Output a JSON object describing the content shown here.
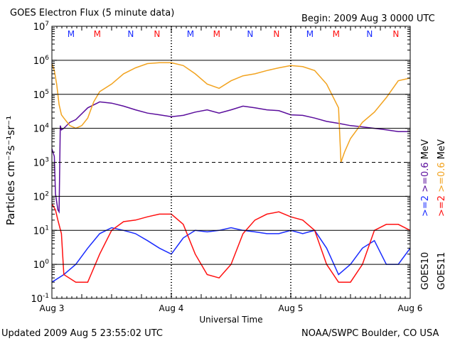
{
  "header": {
    "title": "GOES Electron Flux (5 minute data)",
    "begin": "Begin: 2009 Aug 3 0000 UTC"
  },
  "footer": {
    "updated": "Updated 2009 Aug  5 23:55:02 UTC",
    "credit": "NOAA/SWPC Boulder, CO USA"
  },
  "colors": {
    "goes10_ge06": "#5a0d9c",
    "goes10_ge2": "#1a2cff",
    "goes11_ge06": "#f2a31f",
    "goes11_ge2": "#ff1010",
    "marker_m_blue": "#1a2cff",
    "marker_m_red": "#ff1010"
  },
  "chart_data": {
    "type": "line",
    "title": "GOES Electron Flux (5 minute data)",
    "xlabel": "Universal Time",
    "ylabel": "Particles cm⁻²s⁻¹sr⁻¹",
    "y_scale": "log",
    "ylim": [
      0.1,
      10000000
    ],
    "y_tick_exponents": [
      -1,
      0,
      1,
      2,
      3,
      4,
      5,
      6,
      7
    ],
    "x_range_days": [
      0,
      3
    ],
    "x_tick_labels": [
      "Aug 3",
      "Aug 4",
      "Aug 5",
      "Aug 6"
    ],
    "dashed_threshold": 1000,
    "legend_right": [
      {
        "label": ">=2",
        "color": "#1a2cff"
      },
      {
        "label": ">=0.6",
        "color": "#5a0d9c"
      },
      {
        "label": "MeV",
        "color": "#000000"
      },
      {
        "label": ">=2",
        "color": "#ff1010"
      },
      {
        "label": ">=0.6",
        "color": "#f2a31f"
      },
      {
        "label": "MeV",
        "color": "#000000"
      }
    ],
    "legend_side_labels": [
      "GOES10",
      "GOES11"
    ],
    "local_time_markers": [
      {
        "label": "M",
        "color": "#1a2cff",
        "day": 0.16
      },
      {
        "label": "M",
        "color": "#ff1010",
        "day": 0.38
      },
      {
        "label": "N",
        "color": "#1a2cff",
        "day": 0.66
      },
      {
        "label": "N",
        "color": "#ff1010",
        "day": 0.88
      },
      {
        "label": "M",
        "color": "#1a2cff",
        "day": 1.16
      },
      {
        "label": "M",
        "color": "#ff1010",
        "day": 1.38
      },
      {
        "label": "N",
        "color": "#1a2cff",
        "day": 1.66
      },
      {
        "label": "N",
        "color": "#ff1010",
        "day": 1.88
      },
      {
        "label": "M",
        "color": "#1a2cff",
        "day": 2.16
      },
      {
        "label": "M",
        "color": "#ff1010",
        "day": 2.38
      },
      {
        "label": "N",
        "color": "#1a2cff",
        "day": 2.66
      },
      {
        "label": "N",
        "color": "#ff1010",
        "day": 2.88
      }
    ],
    "series": [
      {
        "name": "GOES10 >=0.6 MeV",
        "color": "#5a0d9c",
        "x": [
          0.0,
          0.02,
          0.03,
          0.05,
          0.06,
          0.07,
          0.08,
          0.1,
          0.15,
          0.2,
          0.3,
          0.4,
          0.5,
          0.6,
          0.7,
          0.8,
          0.9,
          1.0,
          1.1,
          1.2,
          1.3,
          1.4,
          1.5,
          1.6,
          1.7,
          1.8,
          1.9,
          2.0,
          2.1,
          2.2,
          2.3,
          2.4,
          2.5,
          2.6,
          2.7,
          2.8,
          2.9,
          3.0
        ],
        "y": [
          2500,
          1500,
          120,
          40,
          35,
          12000,
          9000,
          10000,
          15000,
          18000,
          40000,
          60000,
          55000,
          45000,
          35000,
          28000,
          25000,
          22000,
          24000,
          30000,
          35000,
          28000,
          35000,
          45000,
          40000,
          35000,
          33000,
          25000,
          24000,
          20000,
          16000,
          14000,
          12000,
          11000,
          10000,
          9000,
          8000,
          8000
        ]
      },
      {
        "name": "GOES11 >=0.6 MeV",
        "color": "#f2a31f",
        "x": [
          0.0,
          0.02,
          0.04,
          0.06,
          0.08,
          0.1,
          0.15,
          0.2,
          0.25,
          0.3,
          0.35,
          0.4,
          0.5,
          0.6,
          0.7,
          0.8,
          0.9,
          1.0,
          1.1,
          1.2,
          1.3,
          1.4,
          1.5,
          1.6,
          1.7,
          1.8,
          1.9,
          2.0,
          2.1,
          2.2,
          2.3,
          2.4,
          2.42,
          2.45,
          2.5,
          2.6,
          2.7,
          2.8,
          2.9,
          3.0
        ],
        "y": [
          800000,
          500000,
          200000,
          50000,
          25000,
          20000,
          12000,
          10000,
          12000,
          20000,
          60000,
          120000,
          200000,
          400000,
          600000,
          800000,
          850000,
          850000,
          700000,
          400000,
          200000,
          150000,
          250000,
          350000,
          400000,
          500000,
          600000,
          700000,
          650000,
          500000,
          200000,
          40000,
          1000,
          2000,
          5000,
          15000,
          30000,
          80000,
          250000,
          300000
        ]
      },
      {
        "name": "GOES10 >=2 MeV",
        "color": "#1a2cff",
        "x": [
          0.0,
          0.1,
          0.2,
          0.3,
          0.4,
          0.5,
          0.6,
          0.7,
          0.8,
          0.9,
          1.0,
          1.1,
          1.2,
          1.3,
          1.4,
          1.5,
          1.6,
          1.7,
          1.8,
          1.9,
          2.0,
          2.1,
          2.2,
          2.3,
          2.4,
          2.5,
          2.6,
          2.7,
          2.8,
          2.9,
          3.0
        ],
        "y": [
          0.3,
          0.5,
          1.0,
          3.0,
          8.0,
          12.0,
          10.0,
          8.0,
          5.0,
          3.0,
          2.0,
          6.0,
          10.0,
          9.0,
          10.0,
          12.0,
          10.0,
          9.0,
          8.0,
          8.0,
          10.0,
          8.0,
          10.0,
          3.0,
          0.5,
          1.0,
          3.0,
          5.0,
          1.0,
          1.0,
          3.0
        ]
      },
      {
        "name": "GOES11 >=2 MeV",
        "color": "#ff1010",
        "x": [
          0.0,
          0.03,
          0.05,
          0.08,
          0.1,
          0.2,
          0.3,
          0.4,
          0.5,
          0.6,
          0.7,
          0.8,
          0.9,
          1.0,
          1.1,
          1.2,
          1.3,
          1.4,
          1.5,
          1.6,
          1.7,
          1.8,
          1.9,
          2.0,
          2.1,
          2.2,
          2.3,
          2.4,
          2.5,
          2.6,
          2.7,
          2.8,
          2.9,
          3.0
        ],
        "y": [
          60.0,
          40.0,
          20.0,
          8.0,
          0.5,
          0.3,
          0.3,
          2.0,
          10.0,
          18.0,
          20.0,
          25.0,
          30.0,
          30.0,
          15.0,
          2.0,
          0.5,
          0.4,
          1.0,
          8.0,
          20.0,
          30.0,
          35.0,
          25.0,
          20.0,
          10.0,
          1.0,
          0.3,
          0.3,
          1.0,
          10.0,
          15.0,
          15.0,
          10.0
        ]
      }
    ]
  }
}
